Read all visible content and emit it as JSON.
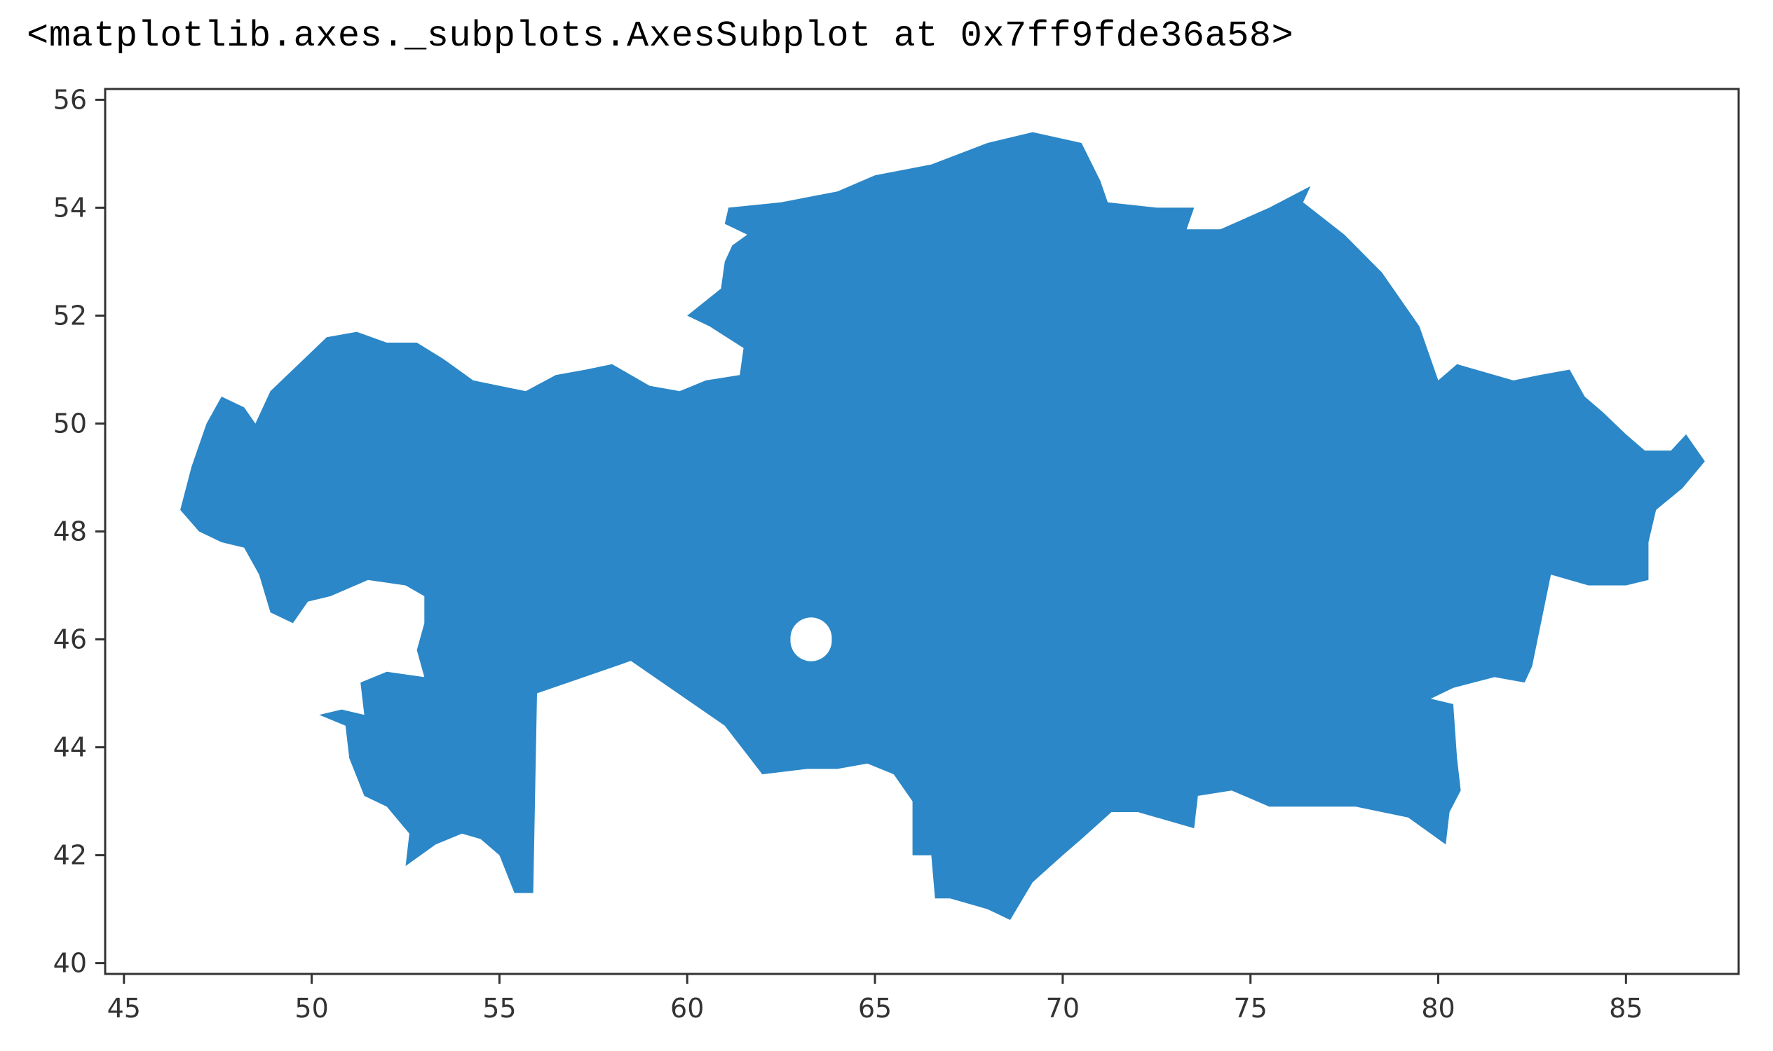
{
  "output": {
    "repr": "<matplotlib.axes._subplots.AxesSubplot at 0x7ff9fde36a58>"
  },
  "chart_data": {
    "type": "map",
    "title": "",
    "xlabel": "",
    "ylabel": "",
    "xlim": [
      44.5,
      88.0
    ],
    "ylim": [
      39.8,
      56.2
    ],
    "xticks": [
      45,
      50,
      55,
      60,
      65,
      70,
      75,
      80,
      85
    ],
    "yticks": [
      40,
      42,
      44,
      46,
      48,
      50,
      52,
      54,
      56
    ],
    "grid": false,
    "fill_color": "#2b87c7",
    "shape_outline": [
      [
        46.5,
        48.4
      ],
      [
        46.8,
        49.2
      ],
      [
        47.2,
        50.0
      ],
      [
        47.6,
        50.5
      ],
      [
        48.2,
        50.3
      ],
      [
        48.5,
        50.0
      ],
      [
        48.9,
        50.6
      ],
      [
        49.8,
        51.2
      ],
      [
        50.4,
        51.6
      ],
      [
        51.2,
        51.7
      ],
      [
        52.0,
        51.5
      ],
      [
        52.8,
        51.5
      ],
      [
        53.5,
        51.2
      ],
      [
        54.3,
        50.8
      ],
      [
        55.0,
        50.7
      ],
      [
        55.7,
        50.6
      ],
      [
        56.5,
        50.9
      ],
      [
        57.3,
        51.0
      ],
      [
        58.0,
        51.1
      ],
      [
        59.0,
        50.7
      ],
      [
        59.8,
        50.6
      ],
      [
        60.5,
        50.8
      ],
      [
        61.4,
        50.9
      ],
      [
        61.5,
        51.4
      ],
      [
        60.6,
        51.8
      ],
      [
        60.0,
        52.0
      ],
      [
        60.9,
        52.5
      ],
      [
        61.0,
        53.0
      ],
      [
        61.2,
        53.3
      ],
      [
        61.6,
        53.5
      ],
      [
        61.0,
        53.7
      ],
      [
        61.1,
        54.0
      ],
      [
        62.5,
        54.1
      ],
      [
        64.0,
        54.3
      ],
      [
        65.0,
        54.6
      ],
      [
        66.5,
        54.8
      ],
      [
        68.0,
        55.2
      ],
      [
        69.2,
        55.4
      ],
      [
        70.5,
        55.2
      ],
      [
        71.0,
        54.5
      ],
      [
        71.2,
        54.1
      ],
      [
        72.5,
        54.0
      ],
      [
        73.5,
        54.0
      ],
      [
        73.3,
        53.6
      ],
      [
        74.2,
        53.6
      ],
      [
        75.5,
        54.0
      ],
      [
        76.6,
        54.4
      ],
      [
        76.4,
        54.1
      ],
      [
        77.5,
        53.5
      ],
      [
        78.5,
        52.8
      ],
      [
        79.5,
        51.8
      ],
      [
        80.0,
        50.8
      ],
      [
        80.5,
        51.1
      ],
      [
        81.0,
        51.0
      ],
      [
        82.0,
        50.8
      ],
      [
        82.7,
        50.9
      ],
      [
        83.5,
        51.0
      ],
      [
        83.9,
        50.5
      ],
      [
        84.4,
        50.2
      ],
      [
        85.0,
        49.8
      ],
      [
        85.5,
        49.5
      ],
      [
        86.2,
        49.5
      ],
      [
        86.6,
        49.8
      ],
      [
        87.1,
        49.3
      ],
      [
        86.5,
        48.8
      ],
      [
        85.8,
        48.4
      ],
      [
        85.6,
        47.8
      ],
      [
        85.6,
        47.1
      ],
      [
        85.0,
        47.0
      ],
      [
        84.0,
        47.0
      ],
      [
        83.0,
        47.2
      ],
      [
        82.5,
        45.5
      ],
      [
        82.3,
        45.2
      ],
      [
        81.5,
        45.3
      ],
      [
        80.4,
        45.1
      ],
      [
        79.8,
        44.9
      ],
      [
        80.4,
        44.8
      ],
      [
        80.5,
        43.8
      ],
      [
        80.6,
        43.2
      ],
      [
        80.3,
        42.8
      ],
      [
        80.2,
        42.2
      ],
      [
        79.2,
        42.7
      ],
      [
        77.8,
        42.9
      ],
      [
        76.5,
        42.9
      ],
      [
        75.5,
        42.9
      ],
      [
        74.5,
        43.2
      ],
      [
        73.6,
        43.1
      ],
      [
        73.5,
        42.5
      ],
      [
        72.0,
        42.8
      ],
      [
        71.3,
        42.8
      ],
      [
        70.5,
        42.3
      ],
      [
        70.0,
        42.0
      ],
      [
        69.2,
        41.5
      ],
      [
        68.6,
        40.8
      ],
      [
        68.0,
        41.0
      ],
      [
        67.0,
        41.2
      ],
      [
        66.6,
        41.2
      ],
      [
        66.5,
        42.0
      ],
      [
        66.0,
        42.0
      ],
      [
        66.0,
        43.0
      ],
      [
        65.5,
        43.5
      ],
      [
        64.8,
        43.7
      ],
      [
        64.0,
        43.6
      ],
      [
        63.2,
        43.6
      ],
      [
        62.0,
        43.5
      ],
      [
        61.0,
        44.4
      ],
      [
        58.5,
        45.6
      ],
      [
        56.0,
        45.0
      ],
      [
        55.9,
        41.3
      ],
      [
        55.4,
        41.3
      ],
      [
        55.0,
        42.0
      ],
      [
        54.5,
        42.3
      ],
      [
        54.0,
        42.4
      ],
      [
        53.3,
        42.2
      ],
      [
        52.5,
        41.8
      ],
      [
        52.6,
        42.4
      ],
      [
        52.0,
        42.9
      ],
      [
        51.4,
        43.1
      ],
      [
        51.0,
        43.8
      ],
      [
        50.9,
        44.4
      ],
      [
        50.2,
        44.6
      ],
      [
        50.8,
        44.7
      ],
      [
        51.4,
        44.6
      ],
      [
        51.3,
        45.2
      ],
      [
        52.0,
        45.4
      ],
      [
        53.0,
        45.3
      ],
      [
        52.8,
        45.8
      ],
      [
        53.0,
        46.3
      ],
      [
        53.0,
        46.8
      ],
      [
        52.5,
        47.0
      ],
      [
        51.5,
        47.1
      ],
      [
        50.5,
        46.8
      ],
      [
        49.9,
        46.7
      ],
      [
        49.5,
        46.3
      ],
      [
        48.9,
        46.5
      ],
      [
        48.6,
        47.2
      ],
      [
        48.2,
        47.7
      ],
      [
        47.6,
        47.8
      ],
      [
        47.0,
        48.0
      ]
    ],
    "holes": [
      {
        "center": [
          63.3,
          46.0
        ],
        "radius": 0.55
      }
    ]
  }
}
